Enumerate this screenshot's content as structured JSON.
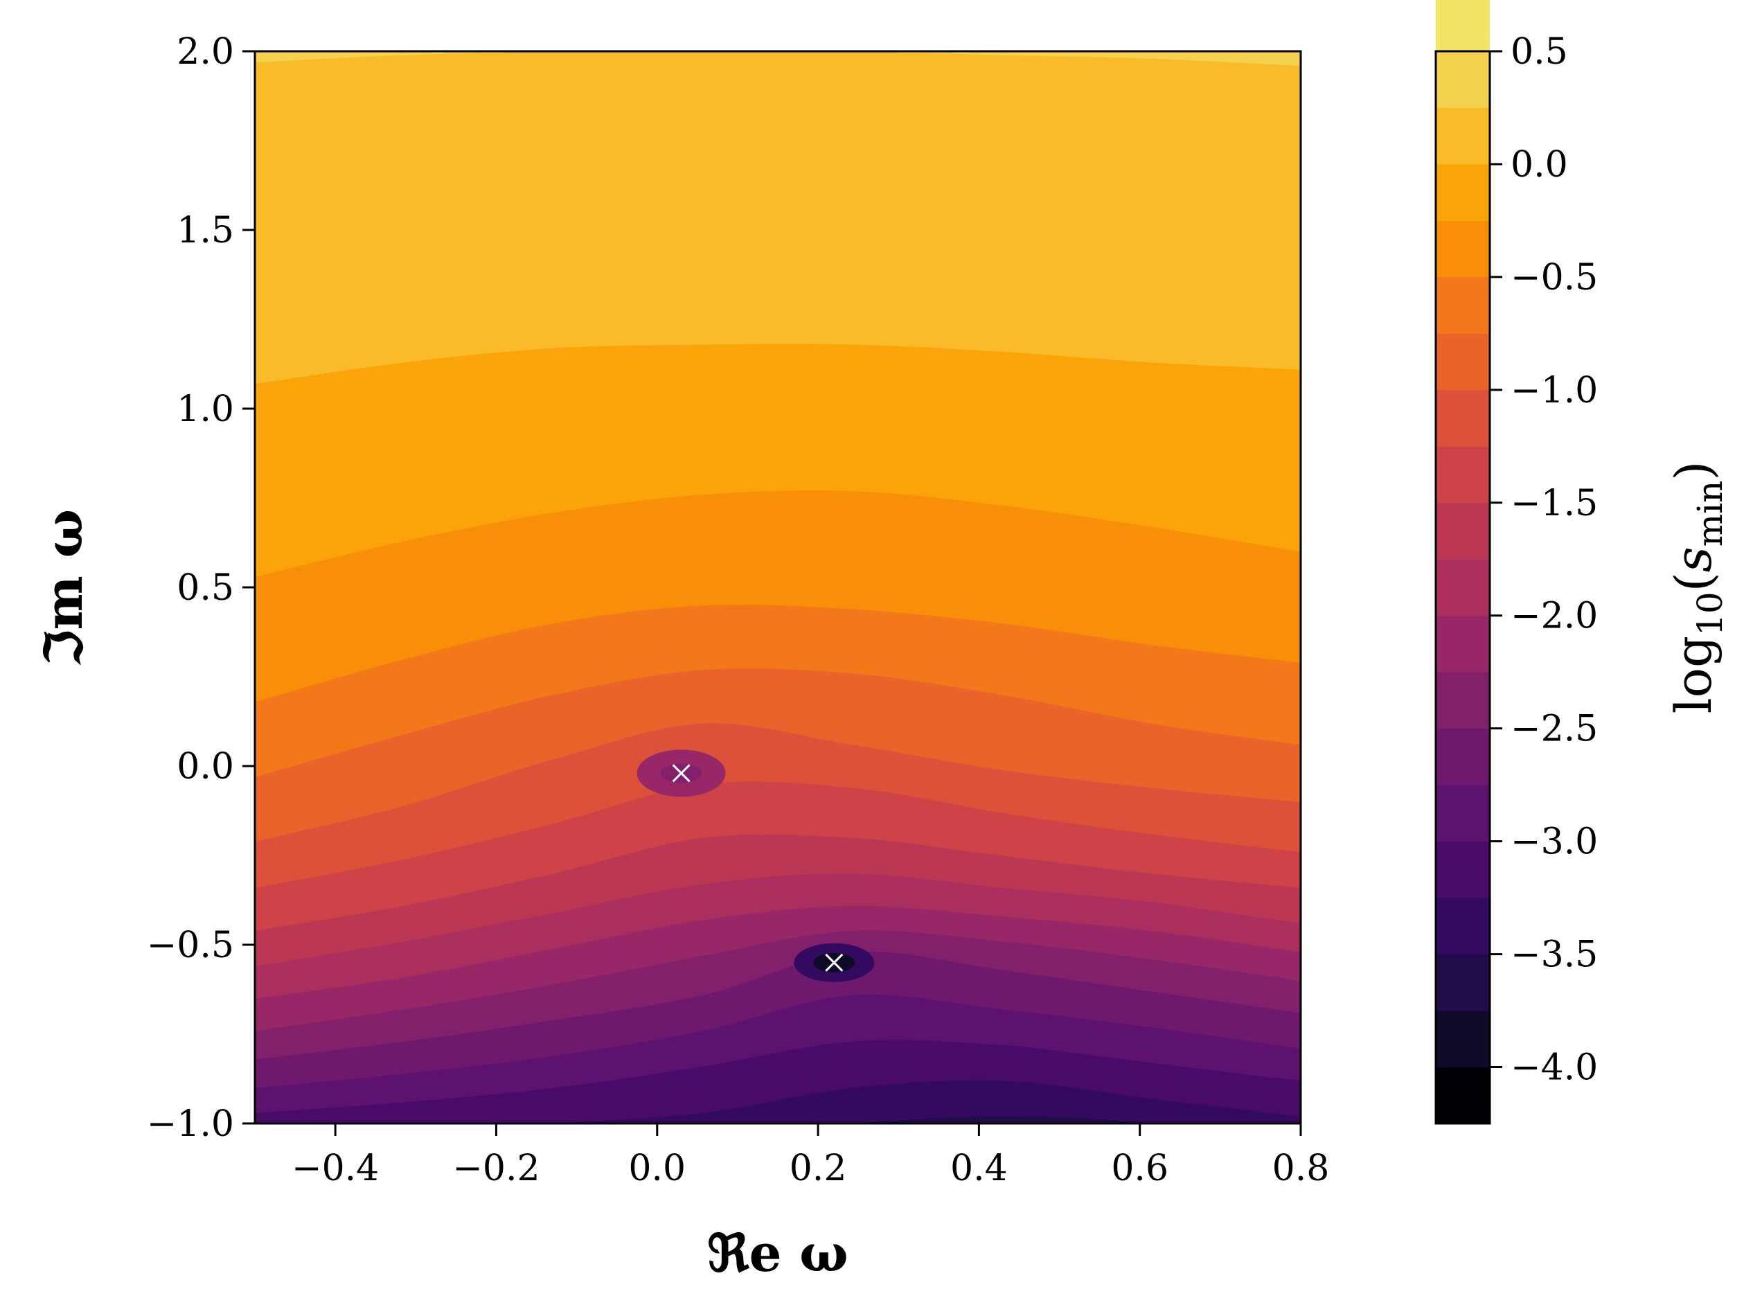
{
  "chart_data": {
    "type": "heatmap",
    "plot": "filled-contour",
    "xlabel": "ℜe ω",
    "ylabel": "ℑm ω",
    "xlim": [
      -0.5,
      0.8
    ],
    "ylim": [
      -1.0,
      2.0
    ],
    "x_ticks": [
      -0.4,
      -0.2,
      0.0,
      0.2,
      0.4,
      0.6,
      0.8
    ],
    "x_tick_labels": [
      "−0.4",
      "−0.2",
      "0.0",
      "0.2",
      "0.4",
      "0.6",
      "0.8"
    ],
    "y_ticks": [
      -1.0,
      -0.5,
      0.0,
      0.5,
      1.0,
      1.5,
      2.0
    ],
    "y_tick_labels": [
      "−1.0",
      "−0.5",
      "0.0",
      "0.5",
      "1.0",
      "1.5",
      "2.0"
    ],
    "colorbar": {
      "label": "log10(smin)",
      "label_main": "log",
      "label_sub": "10",
      "label_arg": "s",
      "label_arg_sub": "min",
      "range": [
        -4.25,
        0.5
      ],
      "level_step": 0.25,
      "ticks": [
        0.5,
        0.0,
        -0.5,
        -1.0,
        -1.5,
        -2.0,
        -2.5,
        -3.0,
        -3.5,
        -4.0
      ],
      "tick_labels": [
        "0.5",
        "0.0",
        "−0.5",
        "−1.0",
        "−1.5",
        "−2.0",
        "−2.5",
        "−3.0",
        "−3.5",
        "−4.0"
      ],
      "colormap": "inferno",
      "band_colors": [
        "#000004",
        "#0f0a27",
        "#1f0c48",
        "#330a5f",
        "#480b6a",
        "#5c126e",
        "#6f196e",
        "#83206b",
        "#972766",
        "#aa2f5e",
        "#bc3754",
        "#cd4347",
        "#dd513a",
        "#ea632a",
        "#f3781a",
        "#f98e09",
        "#fba40a",
        "#f9bb29",
        "#f4d14e",
        "#f2e466",
        "#f3f592"
      ]
    },
    "minima_markers": [
      {
        "re": 0.03,
        "im": -0.02
      },
      {
        "re": 0.22,
        "im": -0.55
      }
    ],
    "contour_levels": [
      {
        "level": 0.25,
        "im_at_x": [
          1.97,
          1.99,
          2.0,
          2.0,
          2.0,
          1.99,
          1.98,
          1.96
        ]
      },
      {
        "level": 0.0,
        "im_at_x": [
          1.07,
          1.13,
          1.17,
          1.18,
          1.18,
          1.16,
          1.13,
          1.11
        ]
      },
      {
        "level": -0.25,
        "im_at_x": [
          0.53,
          0.63,
          0.71,
          0.76,
          0.77,
          0.73,
          0.67,
          0.6
        ]
      },
      {
        "level": -0.5,
        "im_at_x": [
          0.18,
          0.3,
          0.4,
          0.45,
          0.44,
          0.4,
          0.34,
          0.29
        ]
      },
      {
        "level": -0.75,
        "im_at_x": [
          -0.03,
          0.09,
          0.2,
          0.27,
          0.26,
          0.2,
          0.12,
          0.06
        ]
      },
      {
        "level": -1.0,
        "im_at_x": [
          -0.21,
          -0.11,
          0.02,
          0.12,
          0.06,
          -0.01,
          -0.06,
          -0.1
        ]
      },
      {
        "level": -1.25,
        "im_at_x": [
          -0.34,
          -0.26,
          -0.16,
          -0.05,
          -0.06,
          -0.13,
          -0.19,
          -0.24
        ]
      },
      {
        "level": -1.5,
        "im_at_x": [
          -0.46,
          -0.39,
          -0.3,
          -0.2,
          -0.2,
          -0.25,
          -0.3,
          -0.34
        ]
      },
      {
        "level": -1.75,
        "im_at_x": [
          -0.56,
          -0.49,
          -0.41,
          -0.33,
          -0.3,
          -0.34,
          -0.38,
          -0.44
        ]
      },
      {
        "level": -2.0,
        "im_at_x": [
          -0.65,
          -0.59,
          -0.51,
          -0.43,
          -0.39,
          -0.42,
          -0.46,
          -0.52
        ]
      },
      {
        "level": -2.25,
        "im_at_x": [
          -0.74,
          -0.68,
          -0.61,
          -0.53,
          -0.46,
          -0.49,
          -0.54,
          -0.6
        ]
      },
      {
        "level": -2.5,
        "im_at_x": [
          -0.82,
          -0.77,
          -0.71,
          -0.64,
          -0.52,
          -0.57,
          -0.63,
          -0.69
        ]
      },
      {
        "level": -2.75,
        "im_at_x": [
          -0.9,
          -0.86,
          -0.81,
          -0.74,
          -0.64,
          -0.68,
          -0.73,
          -0.79
        ]
      },
      {
        "level": -3.0,
        "im_at_x": [
          -0.97,
          -0.94,
          -0.9,
          -0.84,
          -0.77,
          -0.78,
          -0.83,
          -0.88
        ]
      },
      {
        "level": -3.25,
        "im_at_x": [
          -1.06,
          -1.04,
          -1.0,
          -0.97,
          -0.9,
          -0.88,
          -0.93,
          -0.98
        ]
      },
      {
        "level": -3.5,
        "im_at_x": [
          -1.2,
          -1.2,
          -1.1,
          -1.05,
          -1.0,
          -0.98,
          -1.0,
          -1.08
        ]
      },
      {
        "level": -3.75,
        "im_at_x": [
          -1.2,
          -1.2,
          -1.2,
          -1.2,
          -1.2,
          -1.1,
          -1.2,
          -1.2
        ]
      }
    ]
  }
}
